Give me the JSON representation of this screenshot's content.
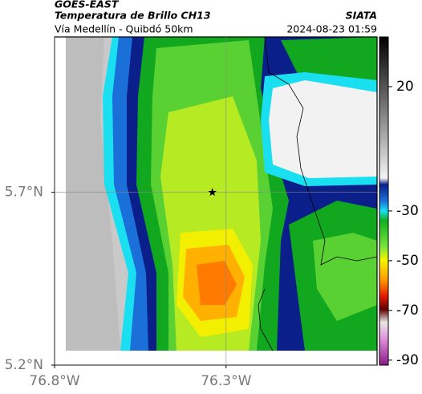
{
  "header": {
    "source": "GOES-EAST",
    "product": "Temperatura de Brillo CH13",
    "organization": "SIATA",
    "region": "Vía Medellín - Quibdó 50km",
    "timestamp": "2024-08-23 01:59"
  },
  "map": {
    "xlim": [
      -76.8,
      -75.86
    ],
    "ylim": [
      5.2,
      6.15
    ],
    "xticks": [
      {
        "value": -76.8,
        "label": "76.8°W"
      },
      {
        "value": -76.3,
        "label": "76.3°W"
      }
    ],
    "yticks": [
      {
        "value": 5.2,
        "label": "5.2°N"
      },
      {
        "value": 5.7,
        "label": "5.7°N"
      }
    ],
    "grid": true,
    "marker": {
      "lon": -76.34,
      "lat": 5.7
    }
  },
  "colorbar": {
    "lim": [
      -92,
      40
    ],
    "ticks": [
      20,
      -30,
      -50,
      -70,
      -90
    ]
  }
}
